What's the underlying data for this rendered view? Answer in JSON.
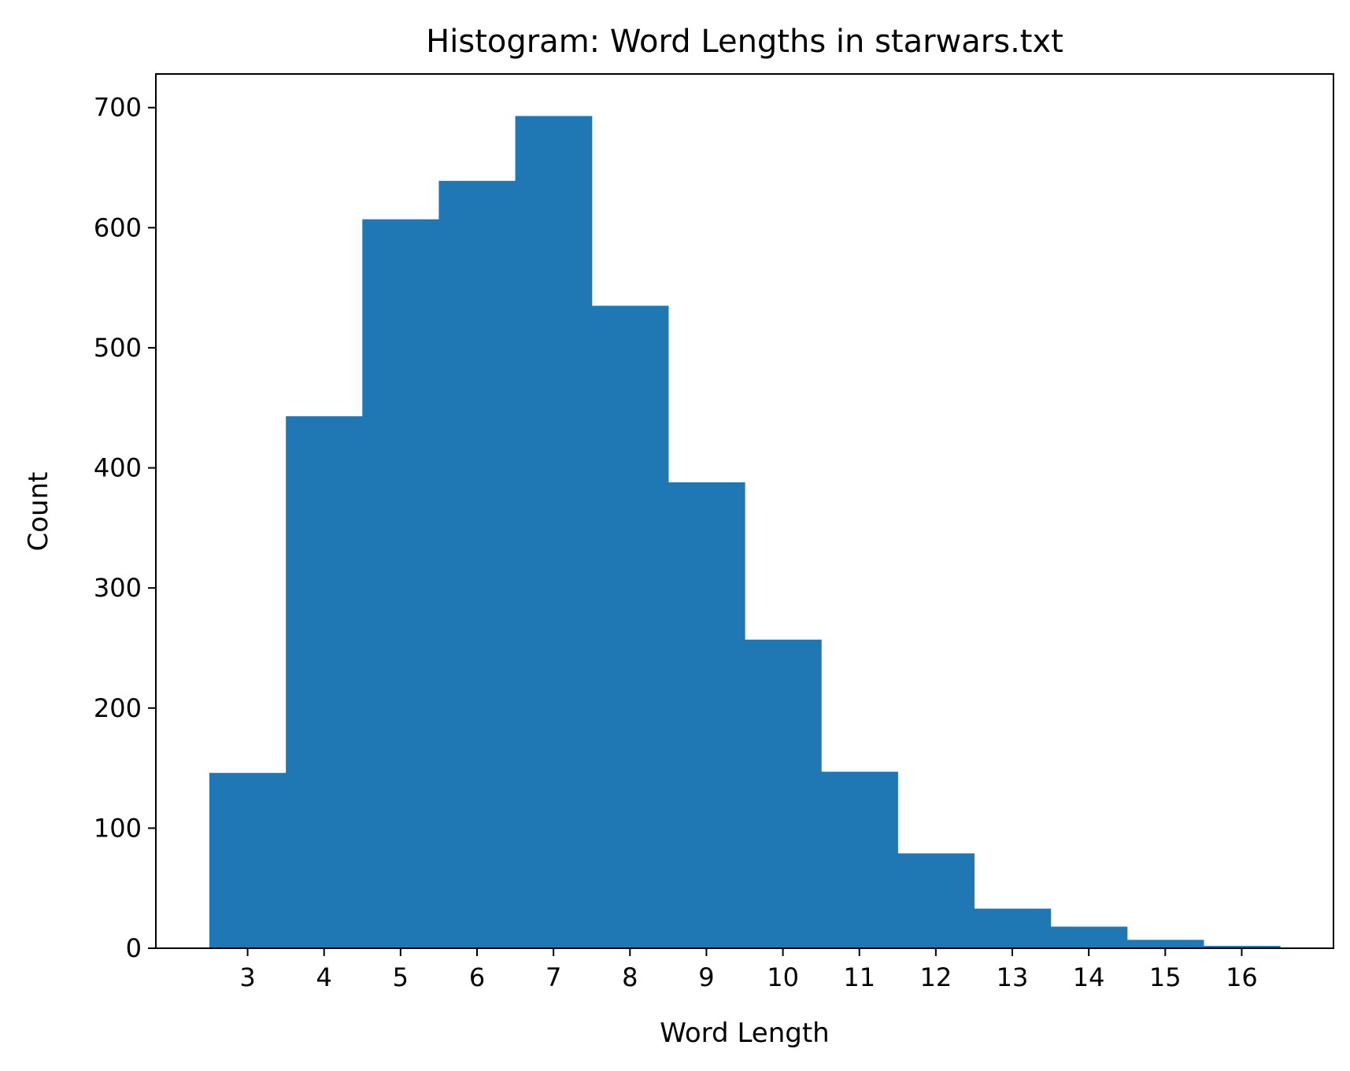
{
  "chart_data": {
    "type": "bar",
    "title": "Histogram: Word Lengths in starwars.txt",
    "xlabel": "Word Length",
    "ylabel": "Count",
    "categories": [
      "3",
      "4",
      "5",
      "6",
      "7",
      "8",
      "9",
      "10",
      "11",
      "12",
      "13",
      "14",
      "15",
      "16"
    ],
    "x": [
      3,
      4,
      5,
      6,
      7,
      8,
      9,
      10,
      11,
      12,
      13,
      14,
      15,
      16
    ],
    "values": [
      146,
      443,
      607,
      639,
      693,
      535,
      388,
      257,
      147,
      79,
      33,
      18,
      7,
      2
    ],
    "bin_edges": [
      2.5,
      3.5,
      4.5,
      5.5,
      6.5,
      7.5,
      8.5,
      9.5,
      10.5,
      11.5,
      12.5,
      13.5,
      14.5,
      15.5,
      16.5
    ],
    "xlim": [
      1.8,
      17.2
    ],
    "ylim": [
      0,
      728
    ],
    "yticks": [
      0,
      100,
      200,
      300,
      400,
      500,
      600,
      700
    ],
    "xticks": [
      3,
      4,
      5,
      6,
      7,
      8,
      9,
      10,
      11,
      12,
      13,
      14,
      15,
      16
    ],
    "grid": false,
    "legend": "none",
    "color": "#1f77b4"
  }
}
